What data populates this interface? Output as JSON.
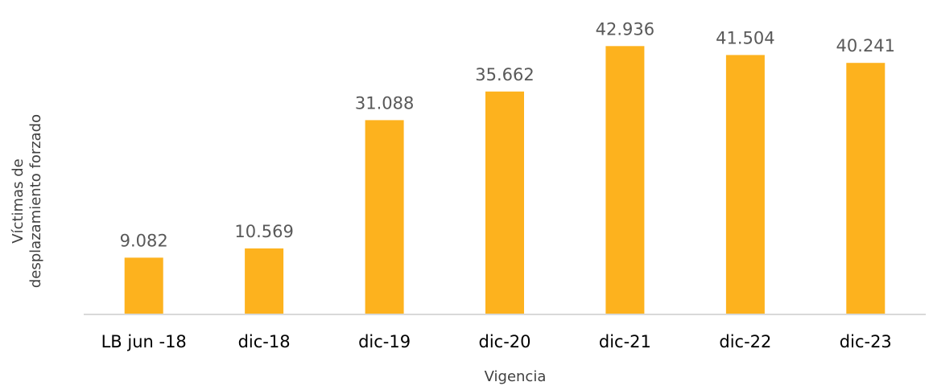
{
  "chart_data": {
    "type": "bar",
    "categories": [
      "LB jun -18",
      "dic-18",
      "dic-19",
      "dic-20",
      "dic-21",
      "dic-22",
      "dic-23"
    ],
    "values": [
      9082,
      10569,
      31088,
      35662,
      42936,
      41504,
      40241
    ],
    "value_labels": [
      "9.082",
      "10.569",
      "31.088",
      "35.662",
      "42.936",
      "41.504",
      "40.241"
    ],
    "xlabel": "Vigencia",
    "ylabel_lines": [
      "Víctimas de",
      "desplazamiento forzado"
    ],
    "ylim": [
      0,
      44000
    ],
    "grid": false,
    "legend": "none",
    "bar_color": "#FDB21E",
    "axis_color": "#D9D9D9"
  }
}
